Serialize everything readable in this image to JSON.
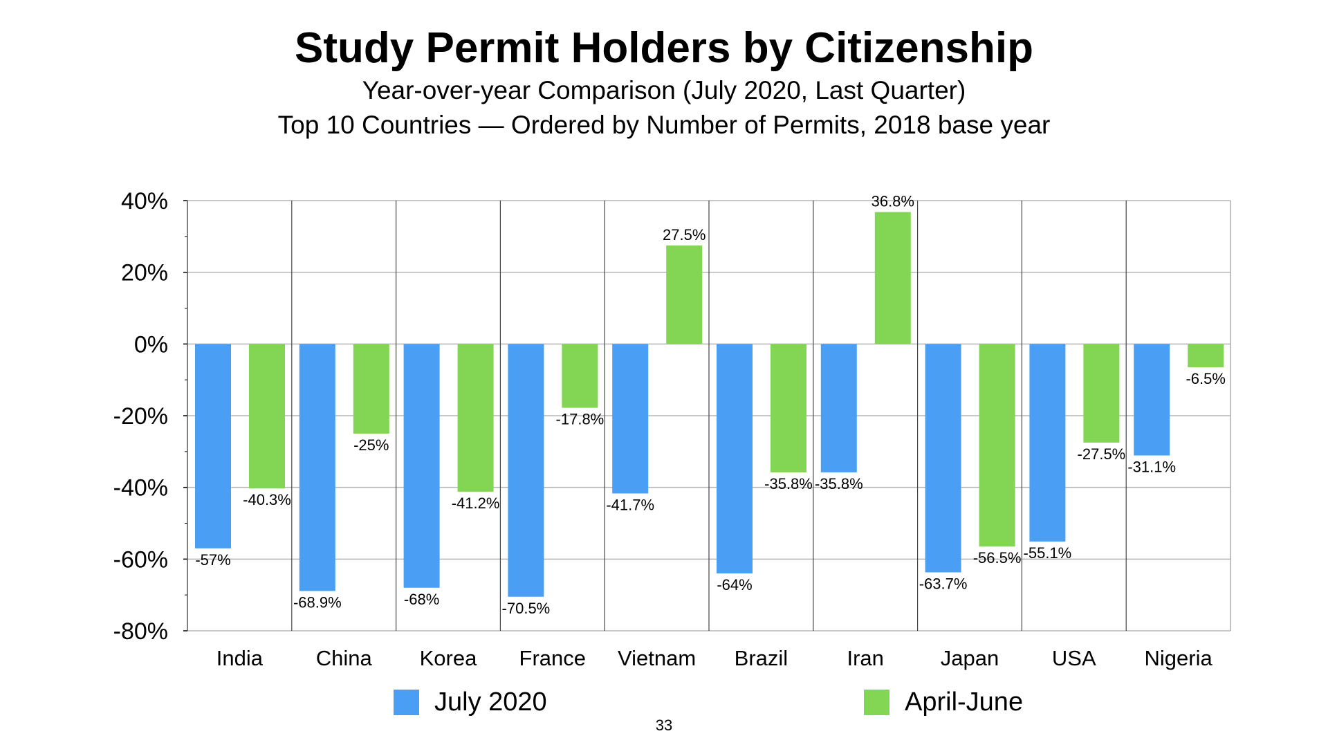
{
  "chart_data": {
    "type": "bar",
    "title": "Study Permit Holders by Citizenship",
    "subtitle": "Year-over-year Comparison (July 2020, Last Quarter)",
    "subtitle2": "Top 10 Countries — Ordered by Number of Permits, 2018 base year",
    "categories": [
      "India",
      "China",
      "Korea",
      "France",
      "Vietnam",
      "Brazil",
      "Iran",
      "Japan",
      "USA",
      "Nigeria"
    ],
    "series": [
      {
        "name": "July 2020",
        "color": "#4a9ff5",
        "values": [
          -57,
          -68.9,
          -68,
          -70.5,
          -41.7,
          -64,
          -35.8,
          -63.7,
          -55.1,
          -31.1
        ],
        "labels": [
          "-57%",
          "-68.9%",
          "-68%",
          "-70.5%",
          "-41.7%",
          "-64%",
          "-35.8%",
          "-63.7%",
          "-55.1%",
          "-31.1%"
        ]
      },
      {
        "name": "April-June",
        "color": "#83d653",
        "values": [
          -40.3,
          -25,
          -41.2,
          -17.8,
          27.5,
          -35.8,
          36.8,
          -56.5,
          -27.5,
          -6.5
        ],
        "labels": [
          "-40.3%",
          "-25%",
          "-41.2%",
          "-17.8%",
          "27.5%",
          "-35.8%",
          "36.8%",
          "-56.5%",
          "-27.5%",
          "-6.5%"
        ]
      }
    ],
    "ylim": [
      -80,
      40
    ],
    "yticks": [
      40,
      20,
      0,
      -20,
      -40,
      -60,
      -80
    ],
    "ytick_labels": [
      "40%",
      "20%",
      "0%",
      "-20%",
      "-40%",
      "-60%",
      "-80%"
    ],
    "xlabel": "",
    "ylabel": "",
    "grid": true,
    "legend_position": "bottom"
  },
  "page_number": "33"
}
